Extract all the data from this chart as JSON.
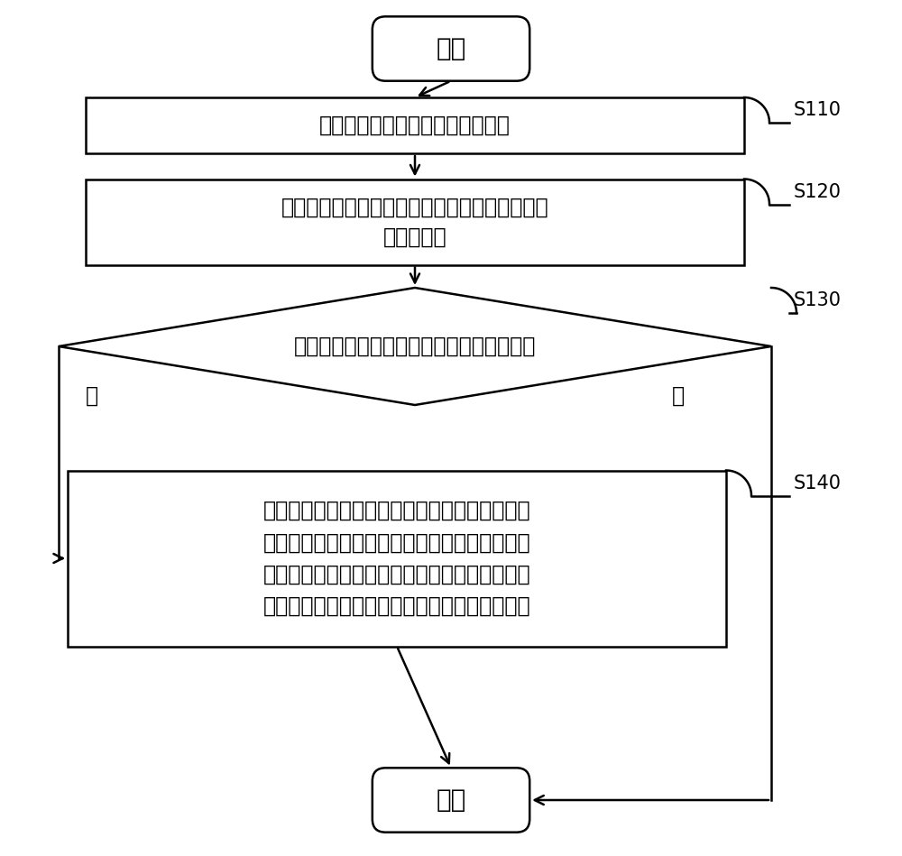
{
  "bg_color": "#ffffff",
  "line_color": "#000000",
  "text_color": "#000000",
  "start_end_text": [
    "开始",
    "结束"
  ],
  "box1_text": "关联手术器械模型和所述力反馈仪",
  "box2_text": "响应用户对所述力反馈仪移动的操作控制手术器\n械模型移动",
  "diamond_text": "检测牙齿模型和所述手术器械是否发生碰撞",
  "yes_label": "是",
  "no_label": "否",
  "box3_text": "响应用户的操作切割所述牙齿模型发生碰撞的部\n分，根据预设的参数计算碰撞产生的力，将计算\n出的碰撞产生的力发送至所述力反馈仪以便于所\n述力反馈仪还原碰撞产生的力以让用户实时感知",
  "step_labels": [
    "S110",
    "S120",
    "S130",
    "S140"
  ],
  "fontsize_main": 17,
  "fontsize_step": 15,
  "fontsize_label": 17,
  "fontsize_stadium": 20
}
